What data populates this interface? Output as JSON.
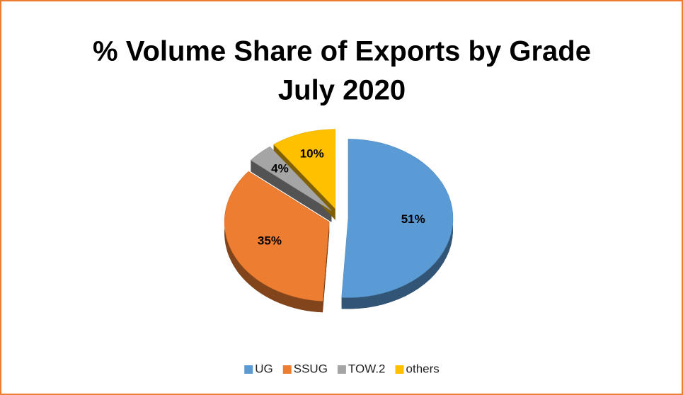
{
  "chart_data": {
    "type": "pie",
    "title": "% Volume Share of Exports by Grade",
    "subtitle": "July 2020",
    "categories": [
      "UG",
      "SSUG",
      "TOW.2",
      "others"
    ],
    "values": [
      51,
      35,
      4,
      10
    ],
    "value_labels": [
      "51%",
      "35%",
      "4%",
      "10%"
    ],
    "colors": [
      "#5b9bd5",
      "#ed7d31",
      "#a5a5a5",
      "#ffc000"
    ],
    "legend": "bottom"
  }
}
